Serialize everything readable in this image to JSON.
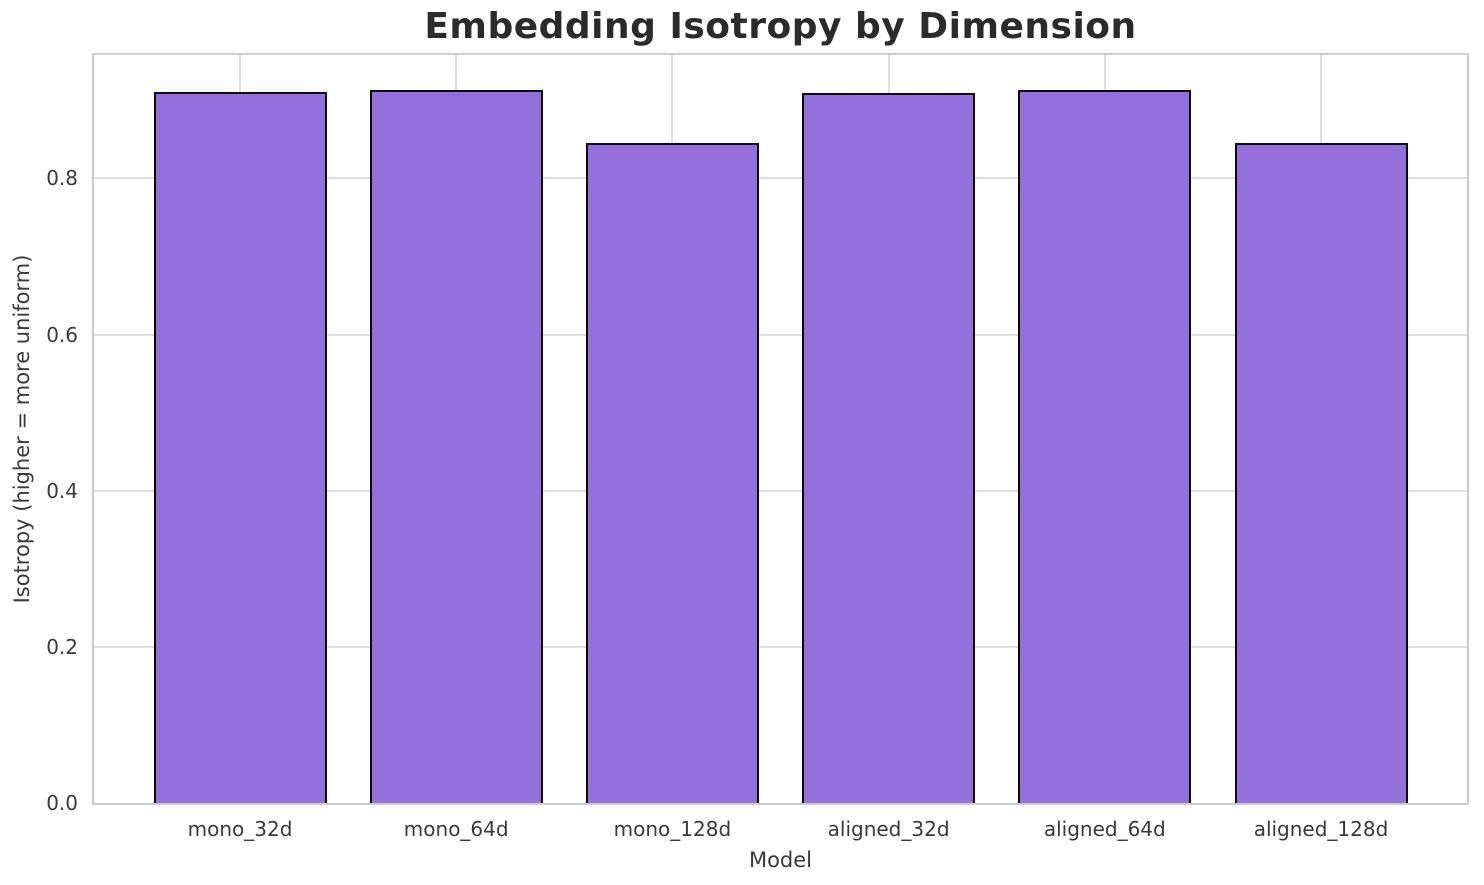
{
  "chart_data": {
    "type": "bar",
    "title": "Embedding Isotropy by Dimension",
    "xlabel": "Model",
    "ylabel": "Isotropy (higher = more uniform)",
    "categories": [
      "mono_32d",
      "mono_64d",
      "mono_128d",
      "aligned_32d",
      "aligned_64d",
      "aligned_128d"
    ],
    "values": [
      0.91,
      0.913,
      0.845,
      0.909,
      0.913,
      0.845
    ],
    "yticks": [
      0.0,
      0.2,
      0.4,
      0.6,
      0.8
    ],
    "ylim": [
      0,
      0.958
    ],
    "grid": "on",
    "legend": "none",
    "bar_color": "#9370DB",
    "bar_edge_color": "#0a0a0a",
    "spine_color": "#cccccc",
    "grid_color": "#dedede"
  }
}
